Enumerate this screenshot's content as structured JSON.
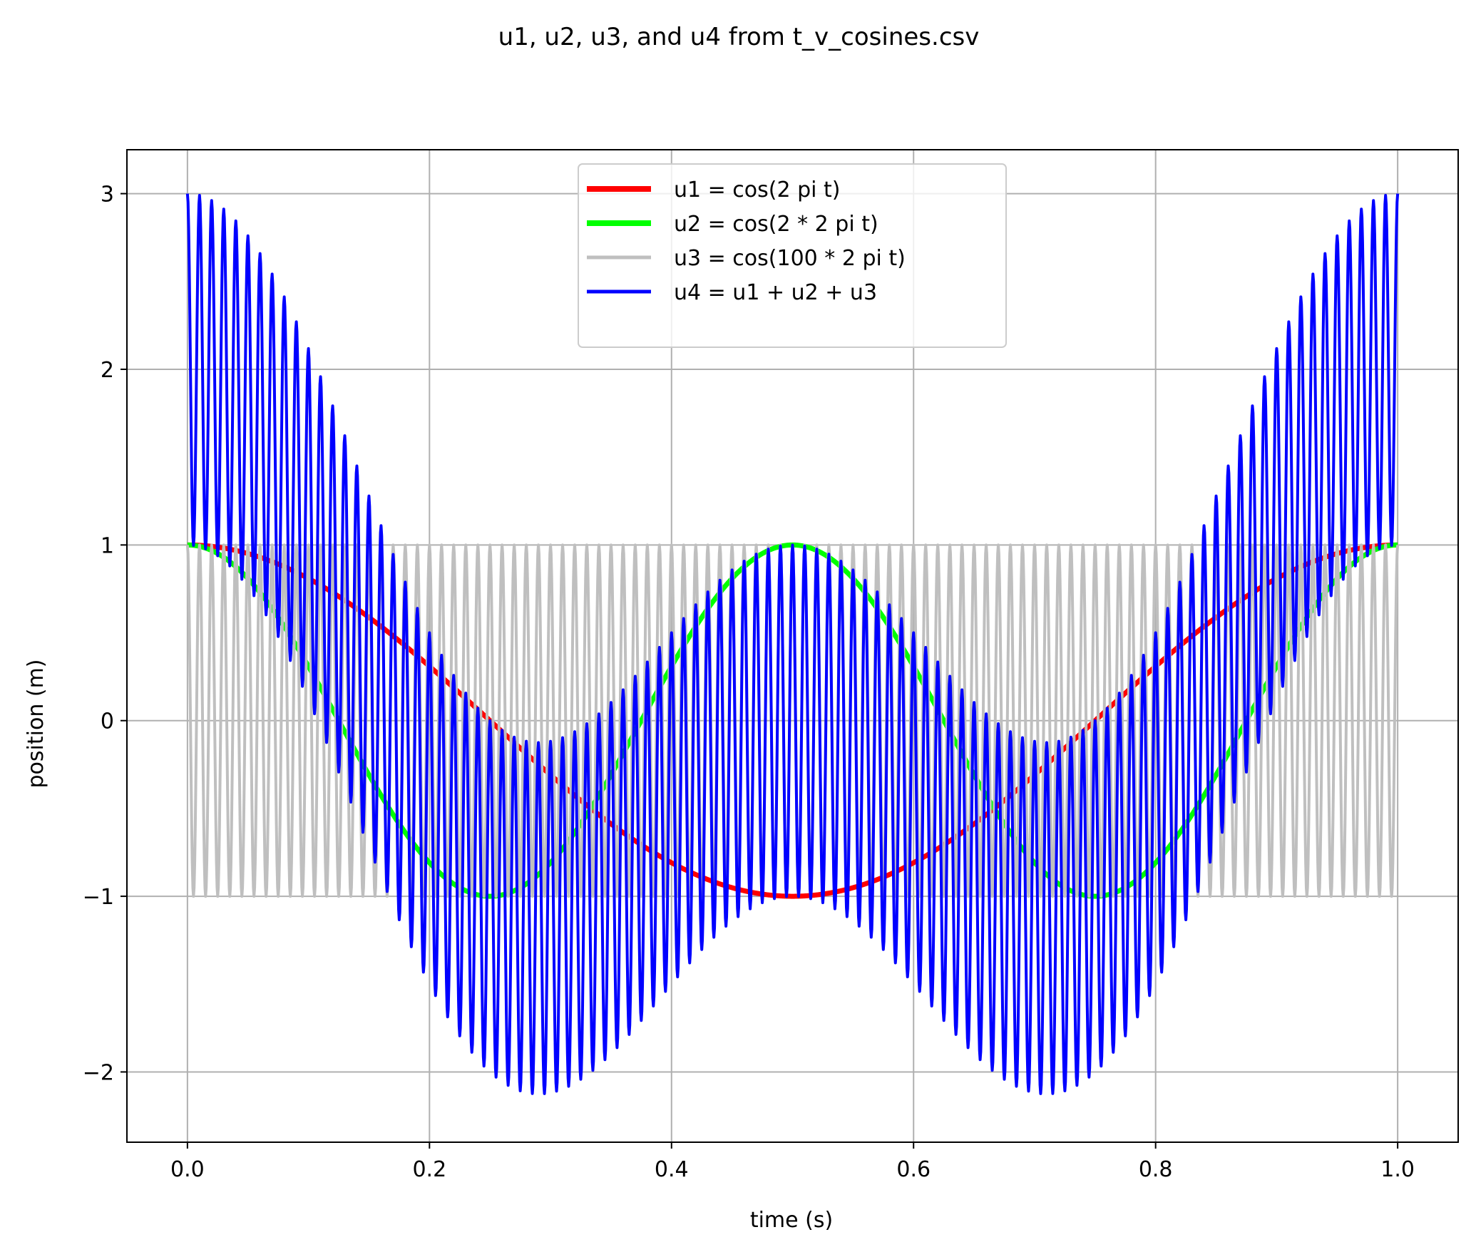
{
  "chart_data": {
    "type": "line",
    "title": "u1, u2, u3, and u4 from t_v_cosines.csv",
    "xlabel": "time (s)",
    "ylabel": "position (m)",
    "xlim": [
      -0.05,
      1.05
    ],
    "ylim": [
      -2.4,
      3.25
    ],
    "xticks": [
      0.0,
      0.2,
      0.4,
      0.6,
      0.8,
      1.0
    ],
    "xtick_labels": [
      "0.0",
      "0.2",
      "0.4",
      "0.6",
      "0.8",
      "1.0"
    ],
    "yticks": [
      -2,
      -1,
      0,
      1,
      2,
      3
    ],
    "ytick_labels": [
      "−2",
      "−1",
      "0",
      "1",
      "2",
      "3"
    ],
    "grid": true,
    "legend_position": "top-center",
    "x_range": [
      0.0,
      1.0
    ],
    "sample_count": 2001,
    "series": [
      {
        "name": "u1 = cos(2 pi t)",
        "formula": "cos(2*pi*t)",
        "color": "#ff0000",
        "frequency_hz": 1
      },
      {
        "name": "u2 = cos(2 * 2 pi t)",
        "formula": "cos(2*2*pi*t)",
        "color": "#00ff00",
        "frequency_hz": 2
      },
      {
        "name": "u3 = cos(100 * 2 pi t)",
        "formula": "cos(100*2*pi*t)",
        "color": "#bfbfbf",
        "frequency_hz": 100
      },
      {
        "name": "u4 = u1 + u2 + u3",
        "formula": "u1 + u2 + u3",
        "color": "#0000ff",
        "frequency_hz": null
      }
    ]
  }
}
